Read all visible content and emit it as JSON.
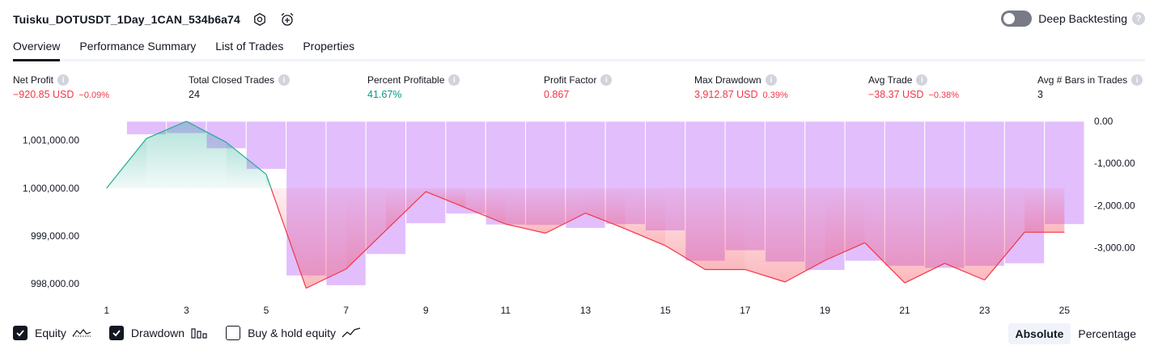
{
  "header": {
    "strategy_name": "Tuisku_DOTUSDT_1Day_1CAN_534b6a74",
    "settings_icon": "gear-icon",
    "alert_icon": "alarm-clock-plus-icon"
  },
  "deep_backtesting": {
    "label": "Deep Backtesting",
    "enabled": false
  },
  "tabs": [
    {
      "label": "Overview",
      "active": true
    },
    {
      "label": "Performance Summary",
      "active": false
    },
    {
      "label": "List of Trades",
      "active": false
    },
    {
      "label": "Properties",
      "active": false
    }
  ],
  "metrics": [
    {
      "label": "Net Profit",
      "value": "−920.85 USD",
      "pct": "−0.09%",
      "tone": "neg"
    },
    {
      "label": "Total Closed Trades",
      "value": "24",
      "pct": "",
      "tone": "neu"
    },
    {
      "label": "Percent Profitable",
      "value": "41.67%",
      "pct": "",
      "tone": "pos"
    },
    {
      "label": "Profit Factor",
      "value": "0.867",
      "pct": "",
      "tone": "neg"
    },
    {
      "label": "Max Drawdown",
      "value": "3,912.87 USD",
      "pct": "0.39%",
      "tone": "neg"
    },
    {
      "label": "Avg Trade",
      "value": "−38.37 USD",
      "pct": "−0.38%",
      "tone": "neg"
    },
    {
      "label": "Avg # Bars in Trades",
      "value": "3",
      "pct": "",
      "tone": "neu"
    }
  ],
  "chart_data": {
    "type": "line",
    "x_ticks": [
      "1",
      "3",
      "5",
      "7",
      "9",
      "11",
      "13",
      "15",
      "17",
      "19",
      "21",
      "23",
      "25"
    ],
    "left_axis_ticks": [
      "1,001,000.00",
      "1,000,000.00",
      "999,000.00",
      "998,000.00"
    ],
    "right_axis_ticks": [
      "0.00",
      "-1,000.00",
      "-2,000.00",
      "-3,000.00"
    ],
    "ylim_left": [
      997700,
      1001400
    ],
    "ylim_right": [
      -4200,
      0
    ],
    "initial_capital": 1000000,
    "series": [
      {
        "name": "Equity",
        "x": [
          1,
          2,
          3,
          4,
          5,
          6,
          7,
          8,
          9,
          10,
          11,
          12,
          13,
          14,
          15,
          16,
          17,
          18,
          19,
          20,
          21,
          22,
          23,
          24,
          25
        ],
        "values": [
          1000000,
          1001040,
          1001400,
          1000960,
          1000290,
          997910,
          998310,
          999120,
          999930,
          999590,
          999250,
          999060,
          999480,
          999150,
          998800,
          998300,
          998300,
          998040,
          998490,
          998860,
          998020,
          998430,
          998080,
          999080,
          999080
        ]
      },
      {
        "name": "Drawdown",
        "x": [
          1,
          2,
          3,
          4,
          5,
          6,
          7,
          8,
          9,
          10,
          11,
          12,
          13,
          14,
          15,
          16,
          17,
          18,
          19,
          20,
          21,
          22,
          23,
          24,
          25
        ],
        "values": [
          -20,
          -320,
          -290,
          -650,
          -1140,
          -3670,
          -3900,
          -3160,
          -2430,
          -2200,
          -2460,
          -2470,
          -2540,
          -2450,
          -2600,
          -3320,
          -3070,
          -3340,
          -3540,
          -3320,
          -3440,
          -3490,
          -3440,
          -3380,
          -2450
        ]
      }
    ],
    "colors": {
      "equity_up": "#22ab94",
      "equity_down": "#f23645",
      "drawdown": "#ce93fc"
    }
  },
  "legend": [
    {
      "label": "Equity",
      "checked": true,
      "icon": "equity-line-icon"
    },
    {
      "label": "Drawdown",
      "checked": true,
      "icon": "drawdown-bars-icon"
    },
    {
      "label": "Buy & hold equity",
      "checked": false,
      "icon": "buy-hold-line-icon"
    }
  ],
  "mode": {
    "options": [
      "Absolute",
      "Percentage"
    ],
    "selected": "Absolute"
  }
}
